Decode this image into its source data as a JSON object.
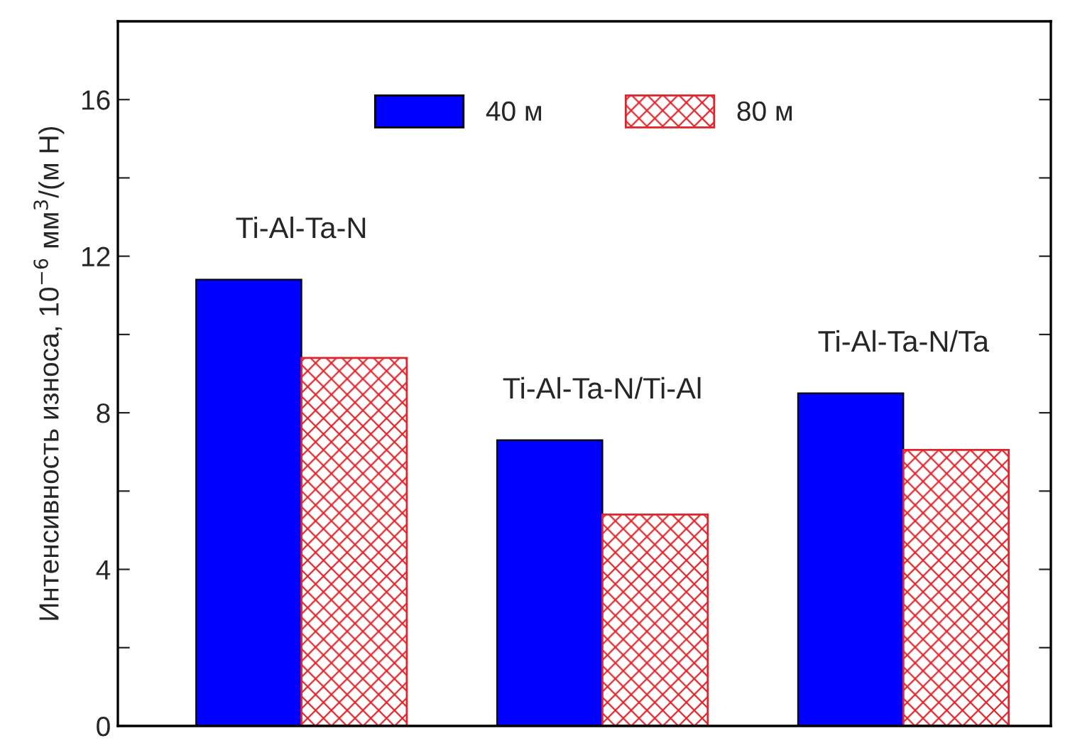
{
  "chart_data": {
    "type": "bar",
    "ylabel": "Интенсивность износа, 10$^{−6}$ мм$^{3}$/(м Н)",
    "categories": [
      null,
      null,
      null
    ],
    "series": [
      {
        "name": "40 м",
        "color": "#0000ff",
        "values": [
          11.4,
          7.3,
          8.5
        ]
      },
      {
        "name": "80 м",
        "color": "#e0242a",
        "values": [
          9.4,
          5.4,
          7.05
        ]
      }
    ],
    "ylim": [
      0,
      18
    ],
    "yticks": [
      0,
      {
        "value": 2,
        "label": null
      },
      4,
      {
        "value": 6,
        "label": null
      },
      8,
      {
        "value": 10,
        "label": null
      },
      12,
      {
        "value": 14,
        "label": null
      },
      16
    ],
    "annotations": [
      "Ti-Al-Ta-N",
      "Ti-Al-Ta-N/Ti-Al",
      "Ti-Al-Ta-N/Ta"
    ],
    "legend": "top",
    "grid": false,
    "tick_labels": "y"
  }
}
